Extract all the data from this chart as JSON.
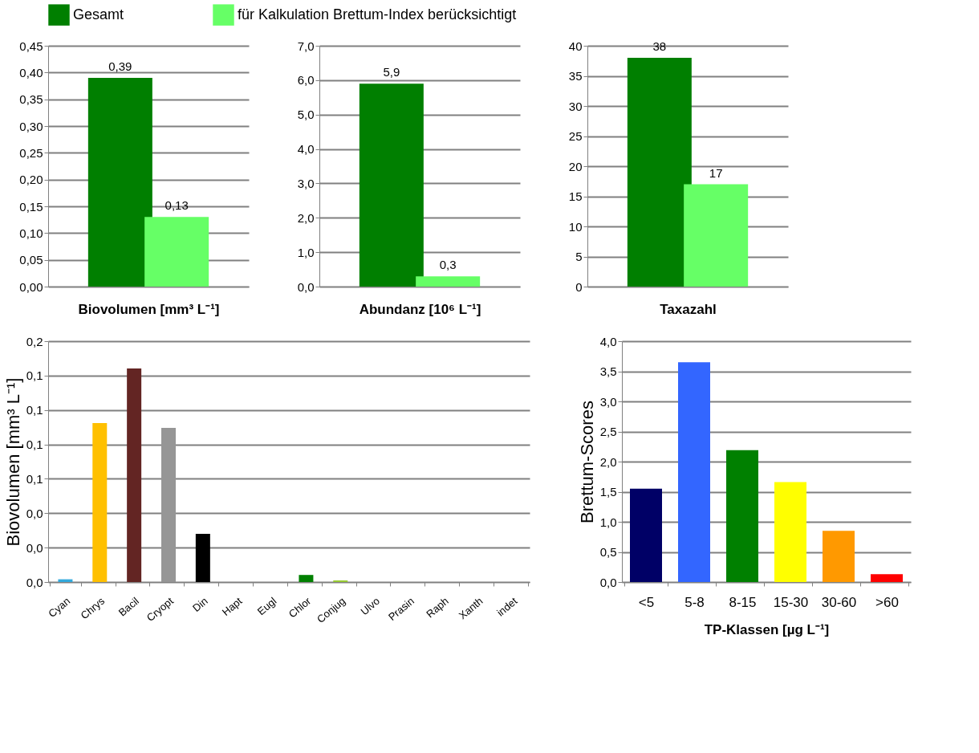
{
  "chart_data": [
    {
      "type": "bar",
      "xlabel": "Biovolumen [mm³ L⁻¹]",
      "categories": [
        null
      ],
      "legend": "top",
      "grid": "y",
      "tick_labels": "y",
      "ylim": [
        0,
        0.45
      ],
      "yticks": [
        {
          "value": 0,
          "label": "0,00"
        },
        {
          "value": 0.05,
          "label": "0,05"
        },
        {
          "value": 0.1,
          "label": "0,10"
        },
        {
          "value": 0.15,
          "label": "0,15"
        },
        {
          "value": 0.2,
          "label": "0,20"
        },
        {
          "value": 0.25,
          "label": "0,25"
        },
        {
          "value": 0.3,
          "label": "0,30"
        },
        {
          "value": 0.35,
          "label": "0,35"
        },
        {
          "value": 0.4,
          "label": "0,40"
        },
        {
          "value": 0.45,
          "label": "0,45"
        }
      ],
      "series": [
        {
          "name": "Gesamt",
          "color": "#007f00",
          "values": [
            0.39
          ],
          "value_labels": [
            "0,39"
          ]
        },
        {
          "name": "für Kalkulation Brettum-Index berücksichtigt",
          "color": "#66ff66",
          "values": [
            0.13
          ],
          "value_labels": [
            "0,13"
          ]
        }
      ]
    },
    {
      "type": "bar",
      "xlabel": "Abundanz [10⁶ L⁻¹]",
      "categories": [
        null
      ],
      "legend": "top",
      "grid": "y",
      "tick_labels": "y",
      "ylim": [
        0,
        7
      ],
      "yticks": [
        {
          "value": 0,
          "label": "0,0"
        },
        {
          "value": 1,
          "label": "1,0"
        },
        {
          "value": 2,
          "label": "2,0"
        },
        {
          "value": 3,
          "label": "3,0"
        },
        {
          "value": 4,
          "label": "4,0"
        },
        {
          "value": 5,
          "label": "5,0"
        },
        {
          "value": 6,
          "label": "6,0"
        },
        {
          "value": 7,
          "label": "7,0"
        }
      ],
      "series": [
        {
          "name": "Gesamt",
          "color": "#007f00",
          "values": [
            5.9
          ],
          "value_labels": [
            "5,9"
          ]
        },
        {
          "name": "für Kalkulation Brettum-Index berücksichtigt",
          "color": "#66ff66",
          "values": [
            0.3
          ],
          "value_labels": [
            "0,3"
          ]
        }
      ]
    },
    {
      "type": "bar",
      "xlabel": "Taxazahl",
      "categories": [
        null
      ],
      "legend": "top",
      "grid": "y",
      "tick_labels": "y",
      "ylim": [
        0,
        40
      ],
      "yticks": [
        0,
        5,
        10,
        15,
        20,
        25,
        30,
        35,
        40
      ],
      "series": [
        {
          "name": "Gesamt",
          "color": "#007f00",
          "values": [
            38
          ],
          "value_labels": [
            "38"
          ]
        },
        {
          "name": "für Kalkulation Brettum-Index berücksichtigt",
          "color": "#66ff66",
          "values": [
            17
          ],
          "value_labels": [
            "17"
          ]
        }
      ]
    },
    {
      "type": "bar",
      "ylabel": "Biovolumen [mm³ L⁻¹]",
      "grid": "y",
      "categories": [
        "Cyan",
        "Chrys",
        "Bacil",
        "Cryopt",
        "Din",
        "Hapt",
        "Eugl",
        "Chlor",
        "Conjug",
        "Ulvo",
        "Prasin",
        "Raph",
        "Xanth",
        "indet"
      ],
      "values": [
        0.0017,
        0.099,
        0.133,
        0.096,
        0.03,
        0,
        0,
        0.0044,
        0.001,
        0,
        0,
        0,
        0,
        0
      ],
      "colors": [
        "#33aadd",
        "#ffc000",
        "#632523",
        "#969696",
        "#000000",
        "#808080",
        "#808080",
        "#008000",
        "#99cc33",
        "#808080",
        "#808080",
        "#808080",
        "#808080",
        "#808080"
      ],
      "ylim": [
        0,
        0.15
      ],
      "yticks": [
        {
          "value": 0,
          "label": "0,0"
        },
        {
          "value": 0.0214,
          "label": "0,0"
        },
        {
          "value": 0.0429,
          "label": "0,0"
        },
        {
          "value": 0.0643,
          "label": "0,1"
        },
        {
          "value": 0.0857,
          "label": "0,1"
        },
        {
          "value": 0.1071,
          "label": "0,1"
        },
        {
          "value": 0.1286,
          "label": "0,1"
        },
        {
          "value": 0.15,
          "label": "0,2"
        }
      ]
    },
    {
      "type": "bar",
      "ylabel": "Brettum-Scores",
      "xlabel": "TP-Klassen [µg L⁻¹]",
      "grid": "y",
      "categories": [
        "<5",
        "5-8",
        "8-15",
        "15-30",
        "30-60",
        ">60"
      ],
      "values": [
        1.55,
        3.65,
        2.19,
        1.66,
        0.85,
        0.13
      ],
      "colors": [
        "#000066",
        "#3366ff",
        "#008000",
        "#ffff00",
        "#ff9900",
        "#ff0000"
      ],
      "ylim": [
        0,
        4
      ],
      "yticks": [
        {
          "value": 0,
          "label": "0,0"
        },
        {
          "value": 0.5,
          "label": "0,5"
        },
        {
          "value": 1,
          "label": "1,0"
        },
        {
          "value": 1.5,
          "label": "1,5"
        },
        {
          "value": 2,
          "label": "2,0"
        },
        {
          "value": 2.5,
          "label": "2,5"
        },
        {
          "value": 3,
          "label": "3,0"
        },
        {
          "value": 3.5,
          "label": "3,5"
        },
        {
          "value": 4,
          "label": "4,0"
        }
      ]
    }
  ]
}
